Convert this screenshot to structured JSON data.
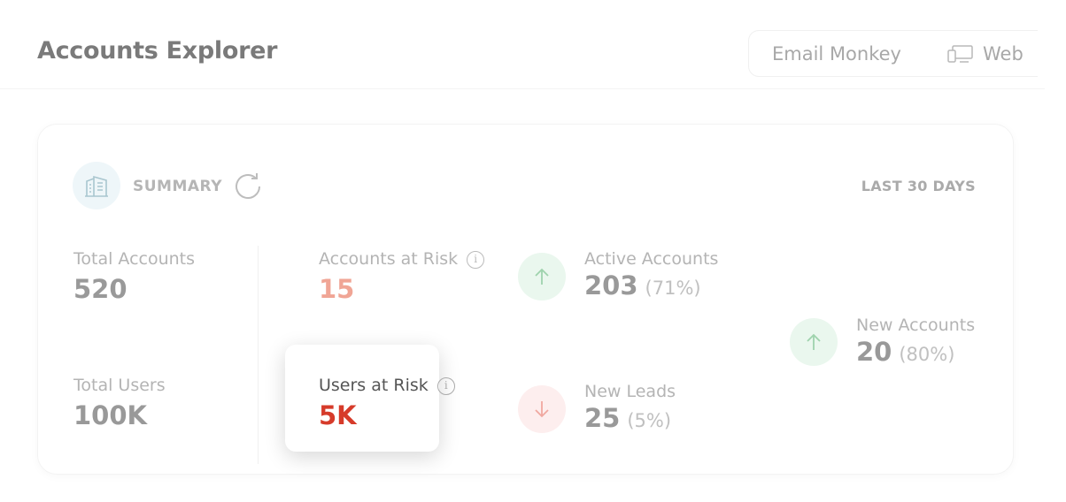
{
  "header": {
    "title": "Accounts Explorer",
    "tabs": [
      {
        "label": "Email Monkey"
      },
      {
        "label": "Web",
        "icon": "devices-icon"
      }
    ]
  },
  "summary": {
    "label": "SUMMARY",
    "icon": "building-icon",
    "refresh_icon": "refresh-icon",
    "period": "LAST 30 DAYS",
    "total_accounts": {
      "label": "Total Accounts",
      "value": "520"
    },
    "total_users": {
      "label": "Total Users",
      "value": "100K"
    },
    "accounts_at_risk": {
      "label": "Accounts at Risk",
      "value": "15",
      "color": "#f0a595"
    },
    "users_at_risk": {
      "label": "Users at Risk",
      "value": "5K",
      "color": "#d63b2a"
    },
    "active_accounts": {
      "label": "Active Accounts",
      "value": "203",
      "pct": "(71%)",
      "trend": "up"
    },
    "new_leads": {
      "label": "New Leads",
      "value": "25",
      "pct": "(5%)",
      "trend": "down"
    },
    "new_accounts": {
      "label": "New Accounts",
      "value": "20",
      "pct": "(80%)",
      "trend": "up"
    }
  }
}
